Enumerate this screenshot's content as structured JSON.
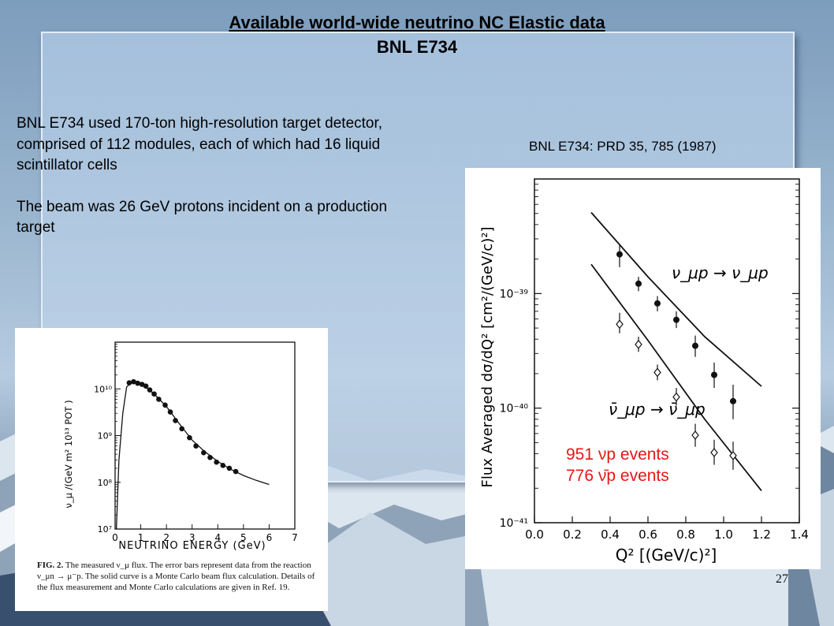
{
  "title": {
    "line1": "Available world-wide neutrino NC Elastic data",
    "line2": "BNL E734"
  },
  "text": {
    "para1": "BNL E734 used 170-ton high-resolution target detector, comprised of 112 modules, each of which had 16 liquid scintillator cells",
    "para2": "The beam was 26 GeV protons incident on a production target"
  },
  "reference": "BNL E734: PRD 35, 785 (1987)",
  "slide_number": "27",
  "colors": {
    "event_text": "#e51717",
    "panel": "#b3cbe3"
  },
  "flux_figure": {
    "ylabel": "ν_μ /(GeV m² 10¹³ POT )",
    "xlabel": "NEUTRINO ENERGY (GeV)",
    "caption_id": "FIG. 2.",
    "caption_text": "The measured ν_μ flux. The error bars represent data from the reaction ν_μn → μ⁻p. The solid curve is a Monte Carlo beam flux calculation. Details of the flux measurement and Monte Carlo calculations are given in Ref. 19."
  },
  "xsec_figure": {
    "ylabel": "Flux Averaged dσ/dQ² [cm²/(GeV/c)²]",
    "xlabel": "Q² [(GeV/c)²]",
    "events_line1": "951 νp events",
    "events_line2": "776 ν̄p events",
    "label_nu": "ν_μp → ν_μp",
    "label_nubar": "ν̄_μp → ν̄_μp"
  },
  "chart_data": [
    {
      "type": "scatter",
      "xlabel": "NEUTRINO ENERGY (GeV)",
      "ylabel": "ν_μ /(GeV m² 10¹³ POT )",
      "xlim": [
        0,
        7
      ],
      "ylim": [
        10000000.0,
        100000000000.0
      ],
      "yscale": "log",
      "xticks": [
        "0",
        "1",
        "2",
        "3",
        "4",
        "5",
        "6",
        "7"
      ],
      "yticks": [
        "10⁷",
        "10⁸",
        "10⁹",
        "10¹⁰"
      ],
      "series": [
        {
          "points": [
            [
              0.55,
              13500000000.0
            ],
            [
              0.72,
              14200000000.0
            ],
            [
              0.88,
              13200000000.0
            ],
            [
              1.05,
              12500000000.0
            ],
            [
              1.2,
              11500000000.0
            ],
            [
              1.35,
              9500000000.0
            ],
            [
              1.52,
              7800000000.0
            ],
            [
              1.7,
              6000000000.0
            ],
            [
              1.95,
              4500000000.0
            ],
            [
              2.15,
              3200000000.0
            ],
            [
              2.35,
              2100000000.0
            ],
            [
              2.6,
              1400000000.0
            ],
            [
              2.9,
              900000000.0
            ],
            [
              3.15,
              600000000.0
            ],
            [
              3.45,
              430000000.0
            ],
            [
              3.7,
              340000000.0
            ],
            [
              3.95,
              270000000.0
            ],
            [
              4.2,
              230000000.0
            ],
            [
              4.45,
              200000000.0
            ],
            [
              4.7,
              170000000.0
            ]
          ]
        },
        {
          "curve": [
            [
              0.05,
              10000000.0
            ],
            [
              0.15,
              300000000.0
            ],
            [
              0.3,
              3000000000.0
            ],
            [
              0.45,
              11000000000.0
            ],
            [
              0.7,
              15000000000.0
            ],
            [
              1.0,
              13500000000.0
            ],
            [
              1.5,
              8000000000.0
            ],
            [
              2.0,
              4200000000.0
            ],
            [
              2.5,
              1800000000.0
            ],
            [
              3.0,
              800000000.0
            ],
            [
              3.5,
              450000000.0
            ],
            [
              4.0,
              280000000.0
            ],
            [
              4.5,
              190000000.0
            ],
            [
              5.0,
              140000000.0
            ],
            [
              5.5,
              110000000.0
            ],
            [
              6.0,
              90000000.0
            ]
          ]
        }
      ]
    },
    {
      "type": "scatter",
      "xlabel": "Q² [(GeV/c)²]",
      "ylabel": "Flux Averaged dσ/dQ² [cm²/(GeV/c)²]",
      "xlim": [
        0,
        1.4
      ],
      "ylim": [
        1e-41,
        1e-38
      ],
      "yscale": "log",
      "xticks": [
        "0.0",
        "0.2",
        "0.4",
        "0.6",
        "0.8",
        "1.0",
        "1.2",
        "1.4"
      ],
      "yticks": [
        "10⁻⁴¹",
        "10⁻⁴⁰",
        "10⁻³⁹"
      ],
      "series": [
        {
          "name": "ν_μp → ν_μp",
          "x": [
            0.45,
            0.55,
            0.65,
            0.75,
            0.85,
            0.95,
            1.05
          ],
          "y": [
            2.2e-39,
            1.22e-39,
            8.2e-40,
            5.9e-40,
            3.5e-40,
            1.95e-40,
            1.15e-40
          ],
          "err": [
            [
              1.7e-39,
              2.7e-39
            ],
            [
              1.05e-39,
              1.4e-39
            ],
            [
              7e-40,
              9.5e-40
            ],
            [
              5e-40,
              7e-40
            ],
            [
              2.8e-40,
              4.3e-40
            ],
            [
              1.5e-40,
              2.5e-40
            ],
            [
              8e-41,
              1.6e-40
            ]
          ],
          "curve": [
            [
              0.3,
              5.1e-39
            ],
            [
              0.6,
              1.4e-39
            ],
            [
              0.9,
              4.2e-40
            ],
            [
              1.2,
              1.55e-40
            ]
          ]
        },
        {
          "name": "ν̄_μp → ν̄_μp",
          "x": [
            0.45,
            0.55,
            0.65,
            0.75,
            0.85,
            0.95,
            1.05
          ],
          "y": [
            5.4e-40,
            3.6e-40,
            2.05e-40,
            1.25e-40,
            5.8e-41,
            4.1e-41,
            3.85e-41
          ],
          "err": [
            [
              4.5e-40,
              6.8e-40
            ],
            [
              3.1e-40,
              4.2e-40
            ],
            [
              1.75e-40,
              2.4e-40
            ],
            [
              1.05e-40,
              1.5e-40
            ],
            [
              4.6e-41,
              7.3e-41
            ],
            [
              3.2e-41,
              5.3e-41
            ],
            [
              2.9e-41,
              5.1e-41
            ]
          ],
          "curve": [
            [
              0.3,
              1.8e-39
            ],
            [
              0.6,
              3.9e-40
            ],
            [
              0.9,
              8e-41
            ],
            [
              1.2,
              1.9e-41
            ]
          ]
        }
      ]
    }
  ]
}
